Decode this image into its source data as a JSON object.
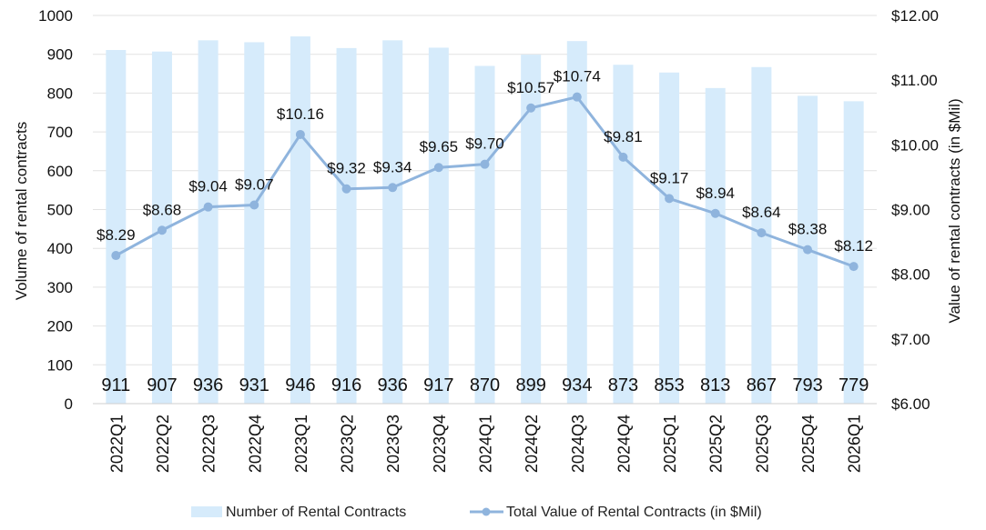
{
  "chart_data": {
    "type": "bar",
    "categories": [
      "2022Q1",
      "2022Q2",
      "2022Q3",
      "2022Q4",
      "2023Q1",
      "2023Q2",
      "2023Q3",
      "2023Q4",
      "2024Q1",
      "2024Q2",
      "2024Q3",
      "2024Q4",
      "2025Q1",
      "2025Q2",
      "2025Q3",
      "2025Q4",
      "2026Q1"
    ],
    "series": [
      {
        "name": "Number of Rental Contracts",
        "type": "bar",
        "axis": "left",
        "values": [
          911,
          907,
          936,
          931,
          946,
          916,
          936,
          917,
          870,
          899,
          934,
          873,
          853,
          813,
          867,
          793,
          779
        ],
        "labels": [
          "911",
          "907",
          "936",
          "931",
          "946",
          "916",
          "936",
          "917",
          "870",
          "899",
          "934",
          "873",
          "853",
          "813",
          "867",
          "793",
          "779"
        ]
      },
      {
        "name": "Total Value of Rental Contracts (in $Mil)",
        "type": "line",
        "axis": "right",
        "values": [
          8.29,
          8.68,
          9.04,
          9.07,
          10.16,
          9.32,
          9.34,
          9.65,
          9.7,
          10.57,
          10.74,
          9.81,
          9.17,
          8.94,
          8.64,
          8.38,
          8.12
        ],
        "labels": [
          "$8.29",
          "$8.68",
          "$9.04",
          "$9.07",
          "$10.16",
          "$9.32",
          "$9.34",
          "$9.65",
          "$9.70",
          "$10.57",
          "$10.74",
          "$9.81",
          "$9.17",
          "$8.94",
          "$8.64",
          "$8.38",
          "$8.12"
        ]
      }
    ],
    "ylabel": "Volume of rental contracts",
    "y2label": "Value of rental contracts (in $Mil)",
    "ylim": [
      0,
      1000
    ],
    "y2lim": [
      6,
      12
    ],
    "yticks": [
      "0",
      "100",
      "200",
      "300",
      "400",
      "500",
      "600",
      "700",
      "800",
      "900",
      "1000"
    ],
    "y2ticks": [
      "$6.00",
      "$7.00",
      "$8.00",
      "$9.00",
      "$10.00",
      "$11.00",
      "$12.00"
    ],
    "grid": true,
    "legend_position": "bottom",
    "colors": {
      "bar": "#d6ebfb",
      "line": "#8fb4dd",
      "grid": "#e2e2e2"
    }
  }
}
